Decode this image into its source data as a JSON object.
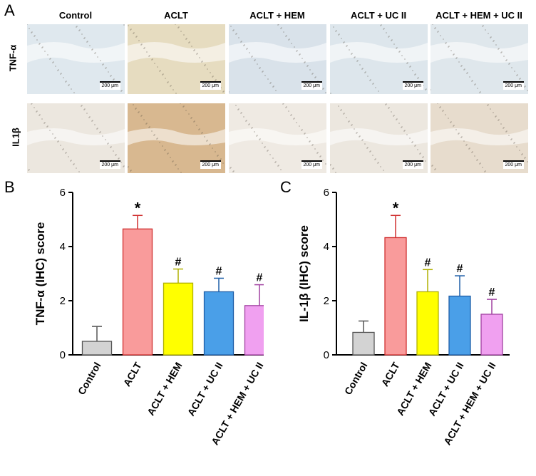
{
  "panel_labels": [
    "A",
    "B",
    "C"
  ],
  "histology": {
    "columns": [
      "Control",
      "ACLT",
      "ACLT + HEM",
      "ACLT + UC II",
      "ACLT + HEM + UC II"
    ],
    "rows": [
      "TNF-α",
      "IL1β"
    ],
    "scale_bar": "200 μm",
    "tints": {
      "TNF-α": [
        "#dfe8ee",
        "#e6dcc0",
        "#d9e2ea",
        "#dde6ec",
        "#dfe7ec"
      ],
      "IL1β": [
        "#ece7df",
        "#d8b890",
        "#efeae3",
        "#ece7df",
        "#e7dccd"
      ]
    }
  },
  "chart_data": [
    {
      "type": "bar",
      "panel": "B",
      "categories": [
        "Control",
        "ACLT",
        "ACLT + HEM",
        "ACLT + UC II",
        "ACLT + HEM + UC II"
      ],
      "values": [
        0.5,
        4.65,
        2.65,
        2.33,
        1.82
      ],
      "errors": [
        0.55,
        0.5,
        0.52,
        0.5,
        0.77
      ],
      "annotations": [
        "",
        "*",
        "#",
        "#",
        "#"
      ],
      "colors": [
        "#d3d3d3",
        "#f99b9b",
        "#ffff00",
        "#4a9fe8",
        "#f0a0f0"
      ],
      "edge_colors": [
        "#555555",
        "#d03030",
        "#b0b000",
        "#1f5fa8",
        "#a040a0"
      ],
      "ylabel": "TNF-α (IHC) score",
      "ylim": [
        0,
        6
      ],
      "yticks": [
        "0",
        "2",
        "4",
        "6"
      ]
    },
    {
      "type": "bar",
      "panel": "C",
      "categories": [
        "Control",
        "ACLT",
        "ACLT + HEM",
        "ACLT + UC II",
        "ACLT + HEM + UC II"
      ],
      "values": [
        0.83,
        4.33,
        2.33,
        2.17,
        1.5
      ],
      "errors": [
        0.42,
        0.82,
        0.82,
        0.75,
        0.55
      ],
      "annotations": [
        "",
        "*",
        "#",
        "#",
        "#"
      ],
      "colors": [
        "#d3d3d3",
        "#f99b9b",
        "#ffff00",
        "#4a9fe8",
        "#f0a0f0"
      ],
      "edge_colors": [
        "#555555",
        "#d03030",
        "#b0b000",
        "#1f5fa8",
        "#a040a0"
      ],
      "ylabel": "IL-1β (IHC) score",
      "ylim": [
        0,
        6
      ],
      "yticks": [
        "0",
        "2",
        "4",
        "6"
      ]
    }
  ]
}
